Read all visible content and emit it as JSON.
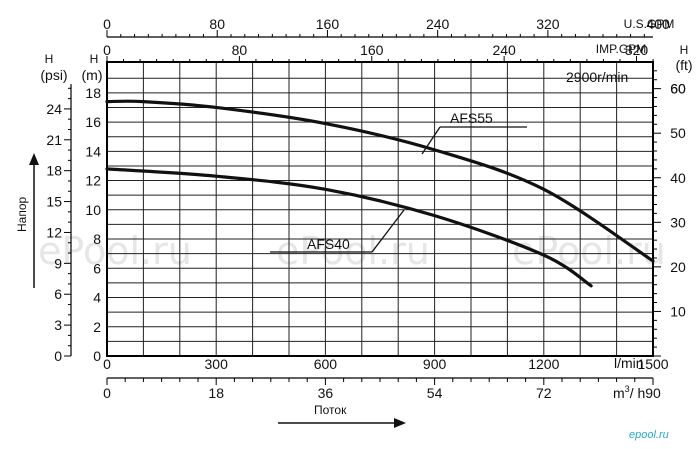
{
  "chart_data": {
    "type": "line",
    "speed_label": "2900r/min",
    "curve_labels": [
      "AFS55",
      "AFS40"
    ],
    "x_axis_label": "Поток",
    "y_axis_label": "Напор",
    "axes": {
      "psi": {
        "label_top": "H",
        "label_unit": "(psi)",
        "ticks": [
          "0",
          "3",
          "6",
          "9",
          "12",
          "15",
          "18",
          "21",
          "24"
        ]
      },
      "m": {
        "label_top": "H",
        "label_unit": "(m)",
        "ticks": [
          "0",
          "2",
          "4",
          "6",
          "8",
          "10",
          "12",
          "14",
          "16",
          "18"
        ]
      },
      "ft": {
        "label_top": "H",
        "label_unit": "(ft)",
        "ticks": [
          "10",
          "20",
          "30",
          "40",
          "50",
          "60"
        ]
      },
      "lmin": {
        "unit": "l/min",
        "ticks": [
          "0",
          "300",
          "600",
          "900",
          "1200",
          "1500"
        ]
      },
      "m3h": {
        "unit_pre": "m",
        "unit_sup": "3",
        "unit_post": "/ h",
        "ticks": [
          "0",
          "18",
          "36",
          "54",
          "72",
          "90"
        ]
      },
      "us_gpm": {
        "unit": "U.S.GPM",
        "ticks": [
          "0",
          "80",
          "160",
          "240",
          "320",
          "400",
          "480"
        ]
      },
      "imp_gpm": {
        "unit": "IMP.GPM",
        "ticks": [
          "0",
          "80",
          "160",
          "240",
          "320",
          "400"
        ]
      }
    },
    "xlim": [
      0,
      1500
    ],
    "ylim": [
      0,
      19
    ],
    "grid": true,
    "series": [
      {
        "name": "AFS55",
        "x": [
          0,
          100,
          300,
          600,
          900,
          1200,
          1500
        ],
        "y": [
          17.4,
          17.4,
          17.0,
          15.9,
          14.1,
          11.4,
          6.5
        ]
      },
      {
        "name": "AFS40",
        "x": [
          0,
          300,
          600,
          900,
          1200,
          1330
        ],
        "y": [
          12.8,
          12.3,
          11.4,
          9.6,
          6.9,
          4.8
        ]
      }
    ]
  },
  "watermark": "ePool.ru",
  "corner_logo": "epool.ru"
}
